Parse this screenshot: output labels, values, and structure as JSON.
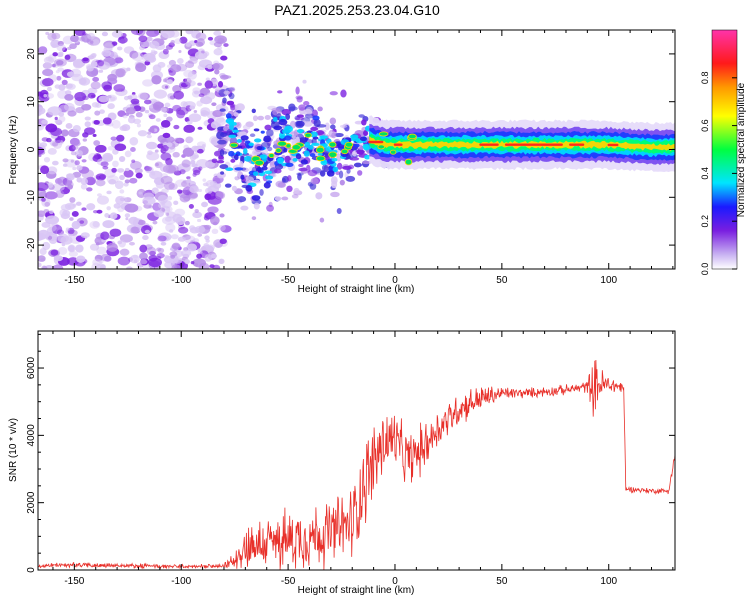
{
  "title": "PAZ1.2025.253.23.04.G10",
  "colors": {
    "snr_line": "#e8302a",
    "frame": "#000000",
    "scatter_light": "#d9c6f5",
    "scatter_mid": "#b58ae8",
    "scatter_dark": "#7a1fe0"
  },
  "chart_data": [
    {
      "type": "heatmap",
      "name": "spectrogram",
      "title": "PAZ1.2025.253.23.04.G10",
      "xlabel": "Height of straight line (km)",
      "ylabel": "Frequency (Hz)",
      "xlim": [
        -167,
        131
      ],
      "ylim": [
        -25,
        25
      ],
      "x_ticks": [
        -150,
        -100,
        -50,
        0,
        50,
        100
      ],
      "y_ticks": [
        -20,
        -10,
        0,
        10,
        20
      ],
      "signal_band": {
        "description_values": "frequency centre (Hz) vs height (km)",
        "x": [
          -78,
          -72,
          -65,
          -58,
          -50,
          -42,
          -35,
          -28,
          -20,
          -12,
          -5,
          0,
          5,
          10,
          20,
          40,
          60,
          80,
          100,
          120,
          131
        ],
        "center_hz": [
          4,
          -2,
          -3,
          0,
          1,
          3,
          0,
          -2,
          1,
          2,
          1,
          1,
          1,
          1,
          1,
          1,
          1,
          1,
          1,
          0.5,
          0.5
        ],
        "spread_hz": [
          9,
          7,
          7,
          7,
          7,
          7,
          6,
          6,
          4,
          3,
          2.5,
          2.5,
          2,
          2,
          2,
          2,
          2,
          2,
          2,
          2,
          2
        ]
      },
      "colorbar": {
        "label": "Normalized spectral amplitude",
        "range": [
          0,
          1
        ],
        "ticks": [
          "0.0",
          "0.2",
          "0.4",
          "0.6",
          "0.8"
        ],
        "tick_values": [
          0,
          0.2,
          0.4,
          0.6,
          0.8
        ]
      }
    },
    {
      "type": "line",
      "name": "snr",
      "xlabel": "Height of straight line (km)",
      "ylabel": "SNR (10 * v/v)",
      "xlim": [
        -167,
        131
      ],
      "ylim": [
        0,
        7100
      ],
      "x_ticks": [
        -150,
        -100,
        -50,
        0,
        50,
        100
      ],
      "y_ticks": [
        0,
        2000,
        4000,
        6000
      ],
      "envelope": {
        "x": [
          -167,
          -150,
          -120,
          -100,
          -80,
          -75,
          -70,
          -60,
          -50,
          -40,
          -30,
          -20,
          -15,
          -10,
          -5,
          0,
          5,
          10,
          15,
          20,
          30,
          40,
          50,
          60,
          70,
          80,
          85,
          90,
          93,
          95,
          100,
          105,
          107,
          108,
          110,
          120,
          128,
          131
        ],
        "mean": [
          120,
          150,
          120,
          100,
          110,
          300,
          700,
          800,
          900,
          1000,
          1100,
          1400,
          2500,
          3200,
          3800,
          3900,
          3300,
          3400,
          3800,
          4200,
          4800,
          5100,
          5250,
          5250,
          5300,
          5350,
          5400,
          5450,
          5500,
          5500,
          5500,
          5450,
          5400,
          2400,
          2400,
          2350,
          2350,
          3400
        ],
        "noise": [
          60,
          80,
          70,
          60,
          60,
          250,
          700,
          800,
          900,
          950,
          1000,
          1100,
          1300,
          1200,
          1100,
          900,
          800,
          800,
          700,
          600,
          500,
          400,
          200,
          150,
          150,
          150,
          150,
          200,
          900,
          600,
          300,
          200,
          150,
          80,
          80,
          80,
          80,
          250
        ]
      }
    }
  ]
}
